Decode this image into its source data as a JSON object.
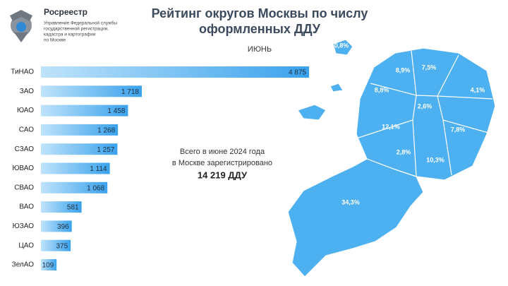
{
  "header": {
    "org": "Росреестр",
    "org_subtitle": [
      "Управление Федеральной службы",
      "государственной регистрации,",
      "кадастра и картографии",
      "по Москве"
    ]
  },
  "title": [
    "Рейтинг округов Москвы по числу",
    "оформленных ДДУ"
  ],
  "chart_data": [
    {
      "type": "bar",
      "subtitle": "ИЮНЬ",
      "categories": [
        "ТиНАО",
        "ЗАО",
        "ЮАО",
        "САО",
        "СЗАО",
        "ЮВАО",
        "СВАО",
        "ВАО",
        "ЮЗАО",
        "ЦАО",
        "ЗелАО"
      ],
      "values": [
        4875,
        1718,
        1458,
        1268,
        1257,
        1114,
        1068,
        581,
        396,
        375,
        109
      ],
      "value_labels": [
        "4 875",
        "1 718",
        "1 458",
        "1 268",
        "1 257",
        "1 114",
        "1 068",
        "581",
        "396",
        "375",
        "109"
      ],
      "color": "#3aa2ec",
      "annotation": [
        "Всего в июне 2024 года",
        "в Москве зарегистрировано",
        "14 219 ДДУ"
      ]
    },
    {
      "type": "map",
      "values": [
        0.8,
        8.9,
        7.5,
        4.1,
        8.8,
        2.6,
        12.1,
        7.8,
        2.8,
        10.3,
        34.3
      ],
      "value_labels": [
        "0,8%",
        "8,9%",
        "7,5%",
        "4,1%",
        "8,8%",
        "2,6%",
        "12,1%",
        "7,8%",
        "2,8%",
        "10,3%",
        "34,3%"
      ],
      "color": "#4db0f0"
    }
  ]
}
